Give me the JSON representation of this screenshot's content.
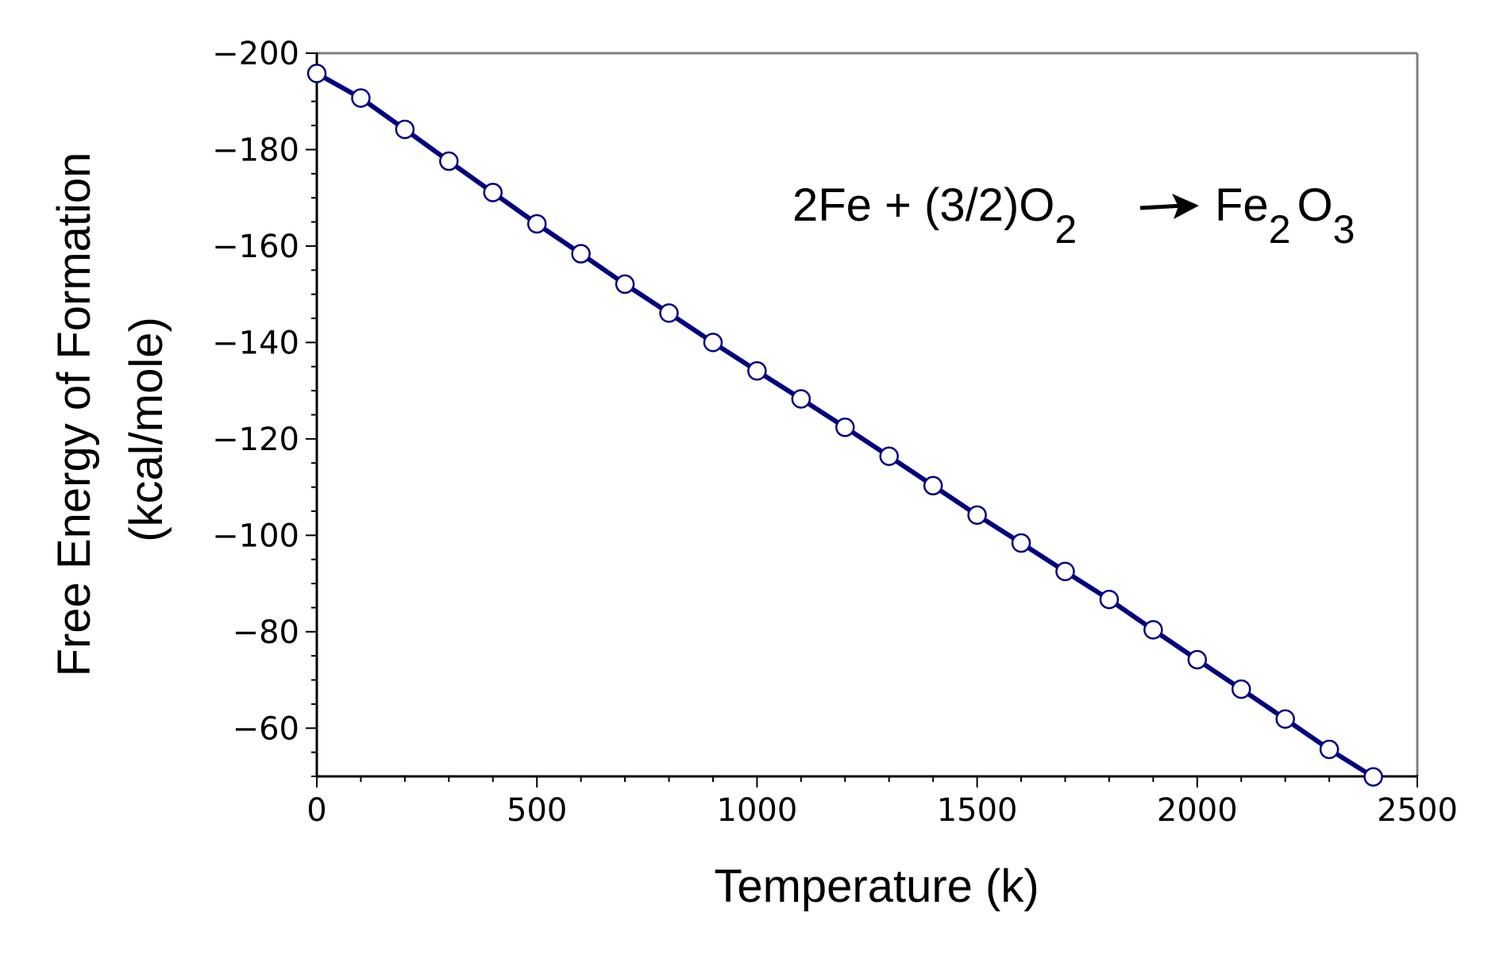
{
  "chart_data": {
    "type": "line",
    "title": "",
    "xlabel": "Temperature (k)",
    "ylabel_line1": "Free Energy of Formation",
    "ylabel_line2": "(kcal/mole)",
    "xlim": [
      0,
      2500
    ],
    "ylim": [
      -200,
      -50
    ],
    "y_inverted": true,
    "grid": false,
    "x_ticks": [
      0,
      500,
      1000,
      1500,
      2000,
      2500
    ],
    "x_tick_labels": [
      "0",
      "500",
      "1000",
      "1500",
      "2000",
      "2500"
    ],
    "y_ticks": [
      -200,
      -180,
      -160,
      -140,
      -120,
      -100,
      -80,
      -60
    ],
    "y_tick_labels": [
      "−200",
      "−180",
      "−160",
      "−140",
      "−120",
      "−100",
      "−80",
      "−60"
    ],
    "annotation": {
      "part1": "2Fe + (3/2)O",
      "sub1": "2",
      "arrow": "→",
      "part2": "Fe",
      "sub2": "2",
      "part3": "O",
      "sub3": "3"
    },
    "series": [
      {
        "name": "Fe2O3 formation",
        "color": "#000080",
        "marker": "open-circle",
        "x": [
          0,
          100,
          200,
          300,
          400,
          500,
          600,
          700,
          800,
          900,
          1000,
          1100,
          1200,
          1300,
          1400,
          1500,
          1600,
          1700,
          1800,
          1900,
          2000,
          2100,
          2200,
          2300,
          2400
        ],
        "y": [
          -195.8,
          -190.7,
          -184.2,
          -177.6,
          -171.1,
          -164.6,
          -158.4,
          -152.1,
          -146.1,
          -140.0,
          -134.1,
          -128.3,
          -122.4,
          -116.4,
          -110.3,
          -104.2,
          -98.4,
          -92.5,
          -86.7,
          -80.4,
          -74.2,
          -68.1,
          -61.9,
          -55.6,
          -49.9
        ]
      }
    ]
  }
}
